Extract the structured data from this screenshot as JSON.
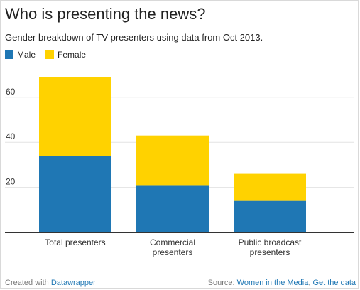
{
  "chart_data": {
    "type": "bar",
    "stacked": true,
    "title": "Who is presenting the news?",
    "subtitle": "Gender breakdown of TV presenters using data from Oct 2013.",
    "categories": [
      "Total presenters",
      "Commercial presenters",
      "Public broadcast presenters"
    ],
    "series": [
      {
        "name": "Male",
        "color": "#1f77b4",
        "values": [
          34,
          21,
          14
        ]
      },
      {
        "name": "Female",
        "color": "#ffd200",
        "values": [
          35,
          22,
          12
        ]
      }
    ],
    "yticks": [
      20,
      40,
      60
    ],
    "ylim": [
      0,
      72
    ],
    "grid": true,
    "legend": "top-left"
  },
  "footer": {
    "created_prefix": "Created with",
    "created_link": "Datawrapper",
    "source_prefix": "Source:",
    "source_link": "Women in the Media",
    "separator": ",",
    "data_link": "Get the data"
  }
}
